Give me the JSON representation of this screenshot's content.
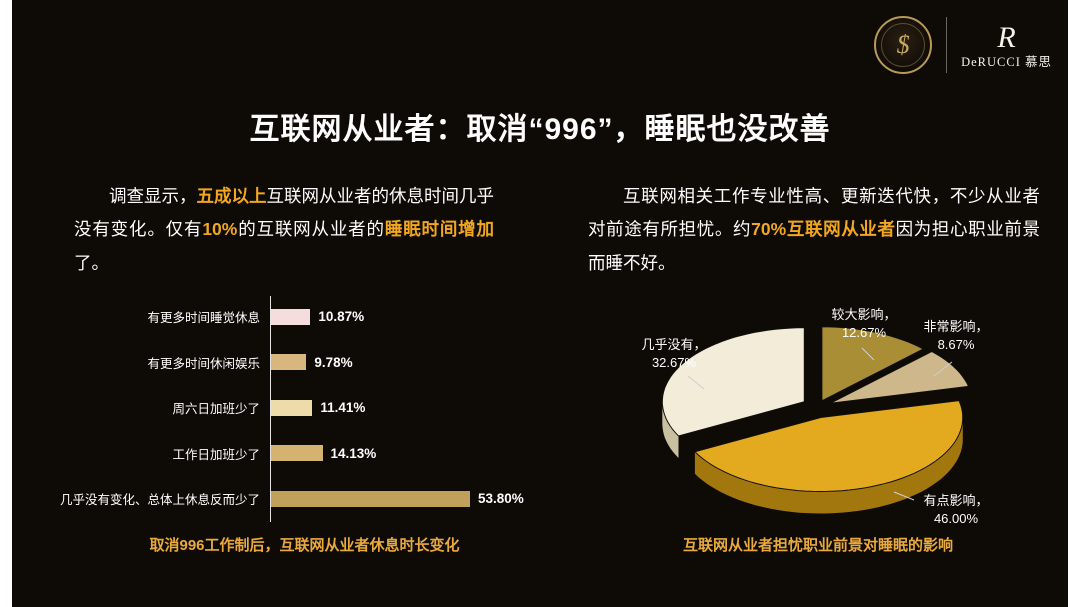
{
  "title": "互联网从业者：取消“996”，睡眠也没改善",
  "accent_color": "#F2A71E",
  "background_color": "#0E0A06",
  "logos": {
    "brand_text": "DeRUCCI 慕思",
    "monogram": "R",
    "seal_glyph": "$"
  },
  "left_panel": {
    "paragraph": [
      {
        "text": "调查显示，",
        "highlight": false
      },
      {
        "text": "五成以上",
        "highlight": true
      },
      {
        "text": "互联网从业者的休息时间几乎没有变化。仅有",
        "highlight": false
      },
      {
        "text": "10%",
        "highlight": true
      },
      {
        "text": "的互联网从业者的",
        "highlight": false
      },
      {
        "text": "睡眠时间增加",
        "highlight": true
      },
      {
        "text": "了。",
        "highlight": false
      }
    ]
  },
  "right_panel": {
    "paragraph": [
      {
        "text": "互联网相关工作专业性高、更新迭代快，不少从业者对前途有所担忧。约",
        "highlight": false
      },
      {
        "text": "70%互联网从业者",
        "highlight": true
      },
      {
        "text": "因为担心职业前景而睡不好。",
        "highlight": false
      }
    ]
  },
  "chart_data": [
    {
      "type": "bar",
      "orientation": "horizontal",
      "categories": [
        "有更多时间睡觉休息",
        "有更多时间休闲娱乐",
        "周六日加班少了",
        "工作日加班少了",
        "几乎没有变化、总体上休息反而少了"
      ],
      "values": [
        10.87,
        9.78,
        11.41,
        14.13,
        53.8
      ],
      "value_labels": [
        "10.87%",
        "9.78%",
        "11.41%",
        "14.13%",
        "53.80%"
      ],
      "colors": [
        "#F6DDDD",
        "#D8B77E",
        "#EDDCA9",
        "#D4B26F",
        "#C0A15C"
      ],
      "xlim": [
        0,
        60
      ],
      "grid": false,
      "caption": "取消996工作制后，互联网从业者休息时长变化"
    },
    {
      "type": "pie",
      "style": "3d-exploded",
      "start_angle_deg": 0,
      "slices": [
        {
          "name": "较大影响",
          "value": 12.67,
          "label": "较大影响，",
          "pct": "12.67%",
          "color": "#A98E35",
          "side": "#7E6823"
        },
        {
          "name": "非常影响",
          "value": 8.67,
          "label": "非常影响，",
          "pct": "8.67%",
          "color": "#CEB78B",
          "side": "#9D8B63"
        },
        {
          "name": "有点影响",
          "value": 46.0,
          "label": "有点影响，",
          "pct": "46.00%",
          "color": "#E3AA1F",
          "side": "#A2780E"
        },
        {
          "name": "几乎没有",
          "value": 32.67,
          "label": "几乎没有，",
          "pct": "32.67%",
          "color": "#F2ECD9",
          "side": "#C9C0A2"
        }
      ],
      "explode": [
        10,
        14,
        8,
        16
      ],
      "caption": "互联网从业者担忧职业前景对睡眠的影响"
    }
  ]
}
